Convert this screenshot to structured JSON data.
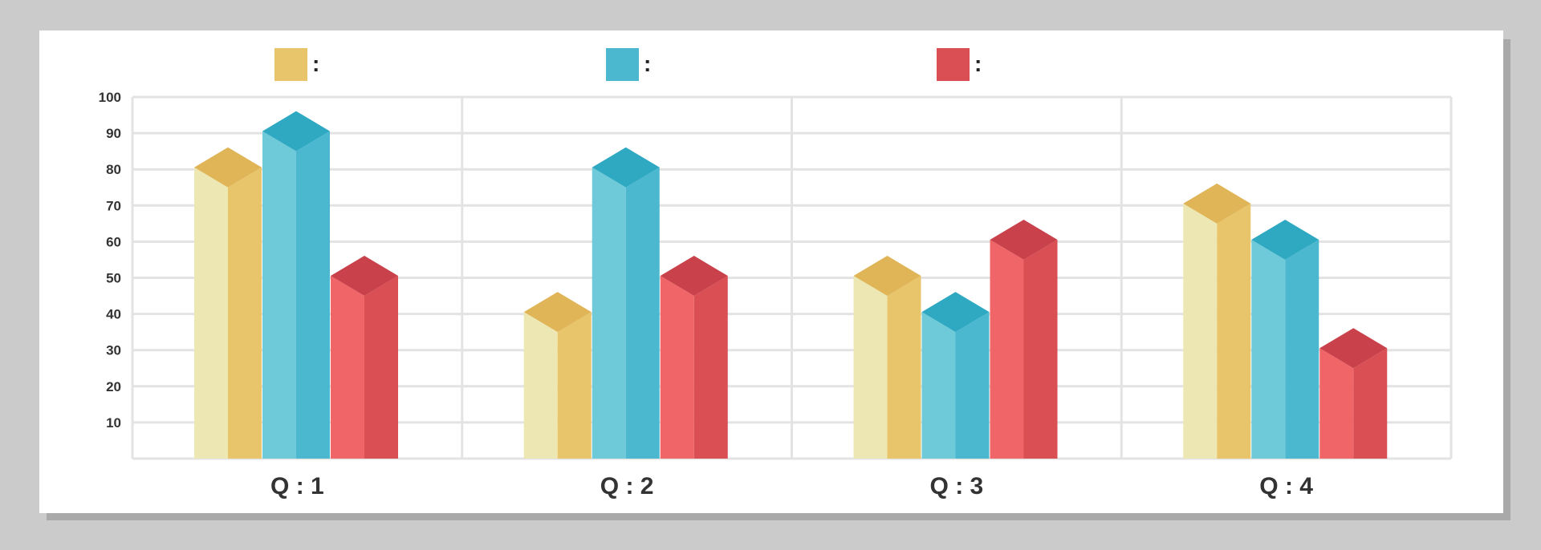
{
  "chart_data": {
    "type": "bar",
    "style": "3d-isometric",
    "categories": [
      "Q : 1",
      "Q : 2",
      "Q : 3",
      "Q : 4"
    ],
    "series": [
      {
        "name": ":",
        "color": "#e8c46a",
        "light": "#ede7b3",
        "top": "#e0b557",
        "values": [
          75,
          35,
          45,
          65
        ]
      },
      {
        "name": ":",
        "color": "#4bb8cf",
        "light": "#6ecad9",
        "top": "#2fa9c2",
        "values": [
          85,
          75,
          35,
          55
        ]
      },
      {
        "name": ":",
        "color": "#d94f53",
        "light": "#f06567",
        "top": "#c9414a",
        "values": [
          45,
          45,
          55,
          25
        ]
      }
    ],
    "yticks": [
      10,
      20,
      30,
      40,
      50,
      60,
      70,
      80,
      90,
      100
    ],
    "ylim": [
      0,
      100
    ],
    "grid": true,
    "legend": "top"
  }
}
